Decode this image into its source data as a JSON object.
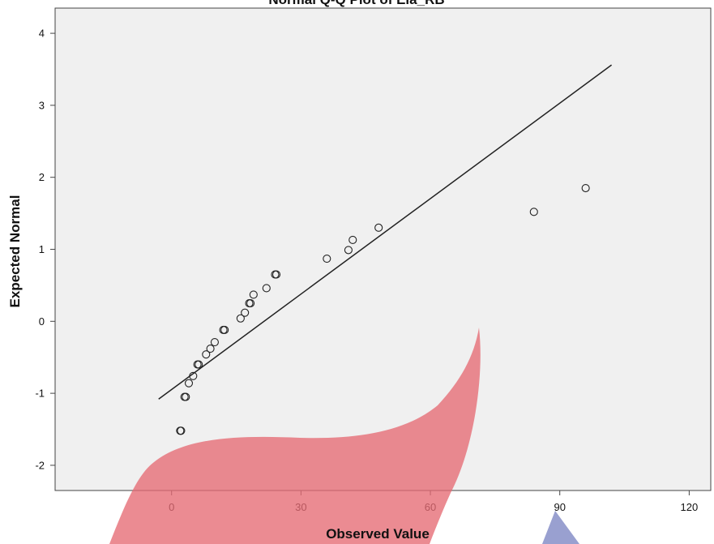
{
  "chart_data": {
    "type": "scatter",
    "title": "Normal Q-Q Plot of Ela_RB",
    "xlabel": "Observed Value",
    "ylabel": "Expected Normal",
    "xlim": [
      -27,
      125
    ],
    "ylim": [
      -2.35,
      4.35
    ],
    "x_ticks": [
      0,
      30,
      60,
      90,
      120
    ],
    "y_ticks": [
      -2,
      -1,
      0,
      1,
      2,
      3,
      4
    ],
    "grid": false,
    "points": [
      {
        "x": 2,
        "y": -1.52
      },
      {
        "x": 2.2,
        "y": -1.52
      },
      {
        "x": 3,
        "y": -1.05
      },
      {
        "x": 3.3,
        "y": -1.05
      },
      {
        "x": 4,
        "y": -0.86
      },
      {
        "x": 5,
        "y": -0.76
      },
      {
        "x": 6,
        "y": -0.6
      },
      {
        "x": 6.3,
        "y": -0.6
      },
      {
        "x": 8,
        "y": -0.46
      },
      {
        "x": 9,
        "y": -0.38
      },
      {
        "x": 10,
        "y": -0.29
      },
      {
        "x": 12,
        "y": -0.12
      },
      {
        "x": 12.3,
        "y": -0.12
      },
      {
        "x": 16,
        "y": 0.04
      },
      {
        "x": 17,
        "y": 0.12
      },
      {
        "x": 18,
        "y": 0.25
      },
      {
        "x": 18.3,
        "y": 0.25
      },
      {
        "x": 19,
        "y": 0.37
      },
      {
        "x": 22,
        "y": 0.46
      },
      {
        "x": 24,
        "y": 0.65
      },
      {
        "x": 24.3,
        "y": 0.65
      },
      {
        "x": 36,
        "y": 0.87
      },
      {
        "x": 41,
        "y": 0.99
      },
      {
        "x": 42,
        "y": 1.13
      },
      {
        "x": 48,
        "y": 1.3
      },
      {
        "x": 84,
        "y": 1.52
      },
      {
        "x": 96,
        "y": 1.85
      }
    ],
    "reference_line": [
      {
        "x": -3,
        "y": -1.08
      },
      {
        "x": 102,
        "y": 3.56
      }
    ],
    "colors": {
      "plot_background": "#f0f0f0",
      "marker": "#222222",
      "line": "#222222",
      "red_shape": "#e66a73",
      "blue_shape": "#8e96cb"
    }
  }
}
